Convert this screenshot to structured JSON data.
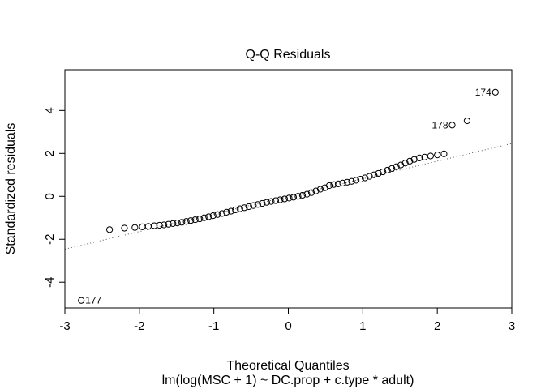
{
  "chart_data": {
    "type": "scatter",
    "title": "Q-Q Residuals",
    "xlabel": "Theoretical Quantiles",
    "ylabel": "Standardized residuals",
    "subtitle": "lm(log(MSC + 1) ~ DC.prop + c.type * adult)",
    "xlim": [
      -3,
      3
    ],
    "ylim": [
      -5.2,
      5.9
    ],
    "xticks": [
      "-3",
      "-2",
      "-1",
      "0",
      "1",
      "2",
      "3"
    ],
    "yticks": [
      "-4",
      "-2",
      "0",
      "2",
      "4"
    ],
    "grid": false,
    "reference_line": {
      "style": "dotted",
      "slope": 0.82,
      "intercept": 0.0
    },
    "labeled_points": [
      {
        "label": "174",
        "x": 2.78,
        "y": 4.85
      },
      {
        "label": "178",
        "x": 2.2,
        "y": 3.32
      },
      {
        "label": "177",
        "x": -2.78,
        "y": -4.85
      }
    ],
    "points": [
      {
        "x": -2.78,
        "y": -4.85
      },
      {
        "x": -2.4,
        "y": -1.55
      },
      {
        "x": -2.2,
        "y": -1.48
      },
      {
        "x": -2.06,
        "y": -1.45
      },
      {
        "x": -1.96,
        "y": -1.42
      },
      {
        "x": -1.88,
        "y": -1.4
      },
      {
        "x": -1.8,
        "y": -1.37
      },
      {
        "x": -1.73,
        "y": -1.35
      },
      {
        "x": -1.67,
        "y": -1.33
      },
      {
        "x": -1.61,
        "y": -1.3
      },
      {
        "x": -1.55,
        "y": -1.27
      },
      {
        "x": -1.49,
        "y": -1.24
      },
      {
        "x": -1.43,
        "y": -1.21
      },
      {
        "x": -1.37,
        "y": -1.17
      },
      {
        "x": -1.31,
        "y": -1.13
      },
      {
        "x": -1.25,
        "y": -1.09
      },
      {
        "x": -1.19,
        "y": -1.05
      },
      {
        "x": -1.13,
        "y": -1.0
      },
      {
        "x": -1.07,
        "y": -0.95
      },
      {
        "x": -1.01,
        "y": -0.9
      },
      {
        "x": -0.95,
        "y": -0.85
      },
      {
        "x": -0.89,
        "y": -0.8
      },
      {
        "x": -0.83,
        "y": -0.74
      },
      {
        "x": -0.77,
        "y": -0.69
      },
      {
        "x": -0.71,
        "y": -0.63
      },
      {
        "x": -0.65,
        "y": -0.58
      },
      {
        "x": -0.59,
        "y": -0.53
      },
      {
        "x": -0.53,
        "y": -0.48
      },
      {
        "x": -0.47,
        "y": -0.43
      },
      {
        "x": -0.41,
        "y": -0.38
      },
      {
        "x": -0.35,
        "y": -0.33
      },
      {
        "x": -0.29,
        "y": -0.28
      },
      {
        "x": -0.23,
        "y": -0.24
      },
      {
        "x": -0.17,
        "y": -0.2
      },
      {
        "x": -0.11,
        "y": -0.16
      },
      {
        "x": -0.05,
        "y": -0.12
      },
      {
        "x": 0.01,
        "y": -0.08
      },
      {
        "x": 0.07,
        "y": -0.04
      },
      {
        "x": 0.13,
        "y": 0.0
      },
      {
        "x": 0.19,
        "y": 0.05
      },
      {
        "x": 0.25,
        "y": 0.1
      },
      {
        "x": 0.31,
        "y": 0.17
      },
      {
        "x": 0.37,
        "y": 0.25
      },
      {
        "x": 0.43,
        "y": 0.33
      },
      {
        "x": 0.49,
        "y": 0.4
      },
      {
        "x": 0.55,
        "y": 0.5
      },
      {
        "x": 0.61,
        "y": 0.55
      },
      {
        "x": 0.67,
        "y": 0.58
      },
      {
        "x": 0.73,
        "y": 0.62
      },
      {
        "x": 0.79,
        "y": 0.66
      },
      {
        "x": 0.85,
        "y": 0.7
      },
      {
        "x": 0.91,
        "y": 0.75
      },
      {
        "x": 0.97,
        "y": 0.8
      },
      {
        "x": 1.03,
        "y": 0.86
      },
      {
        "x": 1.09,
        "y": 0.93
      },
      {
        "x": 1.15,
        "y": 1.0
      },
      {
        "x": 1.21,
        "y": 1.07
      },
      {
        "x": 1.27,
        "y": 1.14
      },
      {
        "x": 1.33,
        "y": 1.22
      },
      {
        "x": 1.39,
        "y": 1.3
      },
      {
        "x": 1.45,
        "y": 1.38
      },
      {
        "x": 1.51,
        "y": 1.46
      },
      {
        "x": 1.57,
        "y": 1.55
      },
      {
        "x": 1.63,
        "y": 1.64
      },
      {
        "x": 1.69,
        "y": 1.72
      },
      {
        "x": 1.76,
        "y": 1.79
      },
      {
        "x": 1.83,
        "y": 1.83
      },
      {
        "x": 1.91,
        "y": 1.88
      },
      {
        "x": 2.0,
        "y": 1.93
      },
      {
        "x": 2.09,
        "y": 1.98
      },
      {
        "x": 2.2,
        "y": 3.32
      },
      {
        "x": 2.4,
        "y": 3.52
      },
      {
        "x": 2.78,
        "y": 4.85
      }
    ]
  }
}
